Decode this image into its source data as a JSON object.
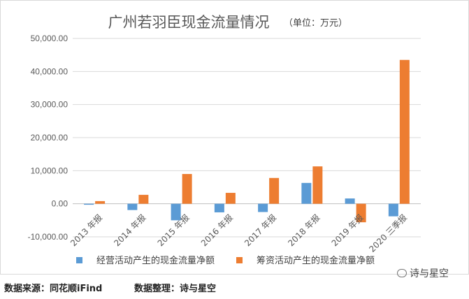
{
  "chart_data": {
    "type": "bar",
    "title": "广州若羽臣现金流量情况",
    "unit": "（单位：万元）",
    "categories": [
      "2013 年报",
      "2014 年报",
      "2015 年报",
      "2016 年报",
      "2017 年报",
      "2018 年报",
      "2019 年报",
      "2020 三季报"
    ],
    "series": [
      {
        "name": "经营活动产生的现金流量净额",
        "color": "#5b9bd5",
        "values": [
          -300,
          -1900,
          -5000,
          -2600,
          -2500,
          6300,
          1600,
          -3800
        ]
      },
      {
        "name": "筹资活动产生的现金流量净额",
        "color": "#ed7d31",
        "values": [
          800,
          2700,
          9000,
          3300,
          7800,
          11300,
          -5600,
          43500
        ]
      }
    ],
    "yticks": [
      "50,000.00",
      "40,000.00",
      "30,000.00",
      "20,000.00",
      "10,000.00",
      "0.00",
      "-10,000.00"
    ],
    "ylim": [
      -10000,
      50000
    ],
    "grid": true,
    "legend": "bottom"
  },
  "footer": {
    "source": "数据来源：同花顺iFind",
    "organizer": "数据整理：诗与星空"
  },
  "watermark": {
    "text": "诗与星空",
    "icon": "wechat-icon"
  }
}
